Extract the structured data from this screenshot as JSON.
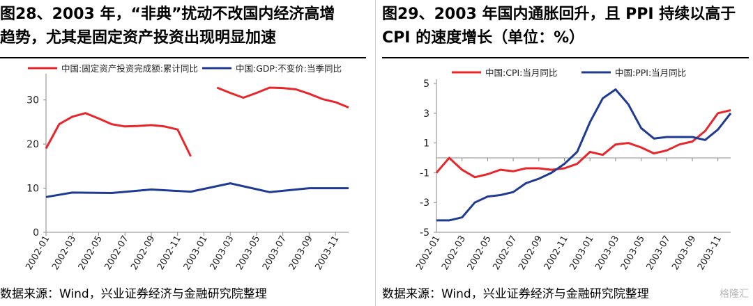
{
  "left": {
    "title": "图28、2003 年，“非典”扰动不改国内经济高增\n趋势，尤其是固定资产投资出现明显加速",
    "source": "数据来源：Wind，兴业证券经济与金融研究院整理"
  },
  "right": {
    "title": "图29、2003 年国内通胀回升，且 PPI 持续以高于\nCPI 的速度增长（单位：%）",
    "source": "数据来源：Wind，兴业证券经济与金融研究院整理"
  },
  "watermark": "格隆汇",
  "colors": {
    "red": "#e8262a",
    "blue": "#1f3a93"
  },
  "chart_data": [
    {
      "type": "line",
      "title": "",
      "ylim": [
        0,
        35
      ],
      "yticks": [
        0,
        10,
        20,
        30
      ],
      "x_tick_labels": [
        "2002-01",
        "2002-03",
        "2002-05",
        "2002-07",
        "2002-09",
        "2002-11",
        "2003-01",
        "2003-03",
        "2003-05",
        "2003-07",
        "2003-09",
        "2003-11"
      ],
      "legend_position": "top",
      "series": [
        {
          "name": "中国:固定资产投资完成额:累计同比",
          "color": "#e8262a",
          "x": [
            "2002-01",
            "2002-02",
            "2002-03",
            "2002-04",
            "2002-05",
            "2002-06",
            "2002-07",
            "2002-08",
            "2002-09",
            "2002-10",
            "2002-11",
            "2002-12",
            "2003-01",
            "2003-02",
            "2003-03",
            "2003-04",
            "2003-05",
            "2003-06",
            "2003-07",
            "2003-08",
            "2003-09",
            "2003-10",
            "2003-11",
            "2003-12"
          ],
          "values": [
            19,
            24.5,
            26.2,
            27,
            25.8,
            24.5,
            24,
            24.1,
            24.3,
            24,
            23.3,
            17.2,
            null,
            32.8,
            31.6,
            30.5,
            31.6,
            32.8,
            32.7,
            32.4,
            31.4,
            30.2,
            29.5,
            28.3
          ]
        },
        {
          "name": "中国:GDP:不变价:当季同比",
          "color": "#1f3a93",
          "x": [
            "2002-01",
            "2002-03",
            "2002-06",
            "2002-09",
            "2002-12",
            "2003-03",
            "2003-06",
            "2003-09",
            "2003-12"
          ],
          "values": [
            8,
            9,
            8.9,
            9.7,
            9.2,
            11.1,
            9.1,
            10,
            10
          ]
        }
      ]
    },
    {
      "type": "line",
      "title": "",
      "ylim": [
        -5,
        5
      ],
      "yticks": [
        -5,
        -3,
        -1,
        1,
        3,
        5
      ],
      "x_tick_labels": [
        "2002-01",
        "2002-03",
        "2002-05",
        "2002-07",
        "2002-09",
        "2002-11",
        "2003-01",
        "2003-03",
        "2003-05",
        "2003-07",
        "2003-09",
        "2003-11"
      ],
      "legend_position": "top",
      "series": [
        {
          "name": "中国:CPI:当月同比",
          "color": "#e8262a",
          "x": [
            "2002-01",
            "2002-02",
            "2002-03",
            "2002-04",
            "2002-05",
            "2002-06",
            "2002-07",
            "2002-08",
            "2002-09",
            "2002-10",
            "2002-11",
            "2002-12",
            "2003-01",
            "2003-02",
            "2003-03",
            "2003-04",
            "2003-05",
            "2003-06",
            "2003-07",
            "2003-08",
            "2003-09",
            "2003-10",
            "2003-11",
            "2003-12"
          ],
          "values": [
            -1,
            0,
            -0.8,
            -1.3,
            -1.1,
            -0.8,
            -0.9,
            -0.7,
            -0.7,
            -0.8,
            -0.7,
            -0.4,
            0.4,
            0.2,
            0.9,
            1.0,
            0.7,
            0.3,
            0.5,
            0.9,
            1.1,
            1.8,
            3.0,
            3.2
          ]
        },
        {
          "name": "中国:PPI:当月同比",
          "color": "#1f3a93",
          "x": [
            "2002-01",
            "2002-02",
            "2002-03",
            "2002-04",
            "2002-05",
            "2002-06",
            "2002-07",
            "2002-08",
            "2002-09",
            "2002-10",
            "2002-11",
            "2002-12",
            "2003-01",
            "2003-02",
            "2003-03",
            "2003-04",
            "2003-05",
            "2003-06",
            "2003-07",
            "2003-08",
            "2003-09",
            "2003-10",
            "2003-11",
            "2003-12"
          ],
          "values": [
            -4.2,
            -4.2,
            -4.0,
            -3.0,
            -2.6,
            -2.5,
            -2.3,
            -1.7,
            -1.4,
            -1.0,
            -0.4,
            0.4,
            2.4,
            4.0,
            4.6,
            3.6,
            2.0,
            1.3,
            1.4,
            1.4,
            1.4,
            1.2,
            1.9,
            3.0
          ]
        }
      ]
    }
  ]
}
